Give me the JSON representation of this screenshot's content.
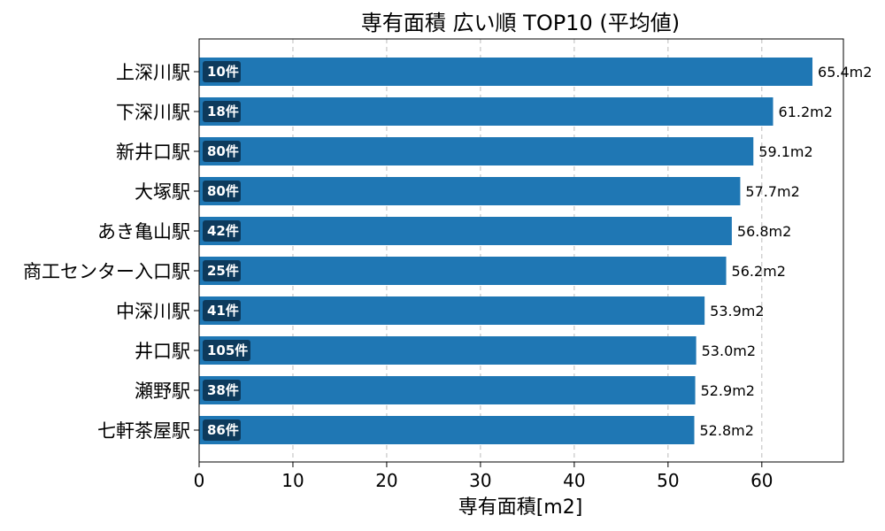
{
  "chart_data": {
    "type": "bar",
    "orientation": "horizontal",
    "title": "専有面積 広い順 TOP10 (平均値)",
    "xlabel": "専有面積[m2]",
    "ylabel": "",
    "xlim": [
      0,
      68.7
    ],
    "xticks": [
      0,
      10,
      20,
      30,
      40,
      50,
      60
    ],
    "grid": "x-dashed",
    "categories": [
      "上深川駅",
      "下深川駅",
      "新井口駅",
      "大塚駅",
      "あき亀山駅",
      "商工センター入口駅",
      "中深川駅",
      "井口駅",
      "瀬野駅",
      "七軒茶屋駅"
    ],
    "values": [
      65.4,
      61.2,
      59.1,
      57.7,
      56.8,
      56.2,
      53.9,
      53.0,
      52.9,
      52.8
    ],
    "value_labels": [
      "65.4m2",
      "61.2m2",
      "59.1m2",
      "57.7m2",
      "56.8m2",
      "56.2m2",
      "53.9m2",
      "53.0m2",
      "52.9m2",
      "52.8m2"
    ],
    "count_labels": [
      "10件",
      "18件",
      "80件",
      "80件",
      "42件",
      "25件",
      "41件",
      "105件",
      "38件",
      "86件"
    ],
    "colors": {
      "bar": "#1f77b4",
      "badge": "#0d3a5c",
      "grid": "#bbbbbb"
    }
  }
}
